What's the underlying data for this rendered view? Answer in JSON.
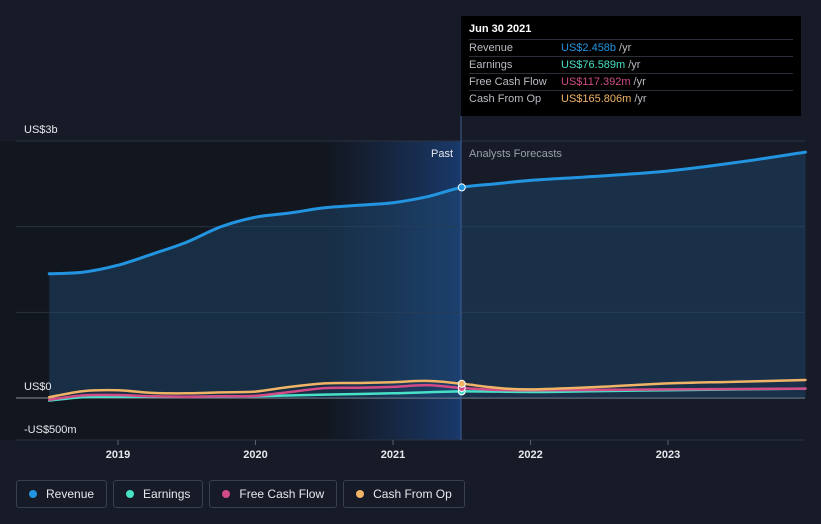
{
  "chart_data": {
    "type": "area",
    "y_axis_labels": [
      "US$3b",
      "US$0",
      "-US$500m"
    ],
    "x_tick_labels": [
      "2019",
      "2020",
      "2021",
      "2022",
      "2023"
    ],
    "past_label": "Past",
    "forecast_label": "Analysts Forecasts",
    "ylim": [
      -500,
      3000
    ],
    "grid": true,
    "legend_position": "bottom-left",
    "series": [
      {
        "name": "Revenue",
        "color": "#2394df",
        "x": [
          2018.5,
          2018.75,
          2019.0,
          2019.25,
          2019.5,
          2019.75,
          2020.0,
          2020.25,
          2020.5,
          2020.75,
          2021.0,
          2021.25,
          2021.5,
          2021.75,
          2022.0,
          2022.5,
          2023.0,
          2023.5,
          2024.0
        ],
        "values": [
          1450,
          1470,
          1550,
          1680,
          1820,
          2000,
          2110,
          2160,
          2220,
          2250,
          2280,
          2350,
          2458,
          2500,
          2540,
          2590,
          2650,
          2750,
          2870
        ]
      },
      {
        "name": "Earnings",
        "color": "#48e0c6",
        "x": [
          2018.5,
          2018.75,
          2019.0,
          2019.5,
          2020.0,
          2020.5,
          2021.0,
          2021.5,
          2022.0,
          2022.5,
          2023.0,
          2023.5,
          2024.0
        ],
        "values": [
          -30,
          10,
          15,
          15,
          20,
          40,
          55,
          77,
          70,
          80,
          90,
          100,
          110
        ]
      },
      {
        "name": "Free Cash Flow",
        "color": "#d24b87",
        "x": [
          2018.5,
          2018.75,
          2019.0,
          2019.25,
          2019.5,
          2019.75,
          2020.0,
          2020.25,
          2020.5,
          2020.75,
          2021.0,
          2021.25,
          2021.5,
          2021.75,
          2022.0,
          2022.5,
          2023.0,
          2023.5,
          2024.0
        ],
        "values": [
          -20,
          30,
          35,
          20,
          15,
          20,
          25,
          70,
          115,
          120,
          130,
          150,
          117,
          95,
          90,
          95,
          100,
          105,
          110
        ]
      },
      {
        "name": "Cash From Op",
        "color": "#f0b466",
        "x": [
          2018.5,
          2018.75,
          2019.0,
          2019.25,
          2019.5,
          2019.75,
          2020.0,
          2020.25,
          2020.5,
          2020.75,
          2021.0,
          2021.25,
          2021.5,
          2021.75,
          2022.0,
          2022.5,
          2023.0,
          2023.5,
          2024.0
        ],
        "values": [
          10,
          80,
          90,
          60,
          55,
          65,
          75,
          130,
          170,
          175,
          185,
          200,
          166,
          120,
          100,
          130,
          170,
          190,
          210
        ]
      }
    ]
  },
  "tooltip": {
    "date": "Jun 30 2021",
    "rows": [
      {
        "label": "Revenue",
        "value": "US$2.458b",
        "unit": "/yr",
        "color": "#2394df"
      },
      {
        "label": "Earnings",
        "value": "US$76.589m",
        "unit": "/yr",
        "color": "#48e0c6"
      },
      {
        "label": "Free Cash Flow",
        "value": "US$117.392m",
        "unit": "/yr",
        "color": "#d24b87"
      },
      {
        "label": "Cash From Op",
        "value": "US$165.806m",
        "unit": "/yr",
        "color": "#f0b466"
      }
    ]
  },
  "legend": [
    {
      "label": "Revenue",
      "color": "#2394df"
    },
    {
      "label": "Earnings",
      "color": "#48e0c6"
    },
    {
      "label": "Free Cash Flow",
      "color": "#d24b87"
    },
    {
      "label": "Cash From Op",
      "color": "#f0b466"
    }
  ]
}
